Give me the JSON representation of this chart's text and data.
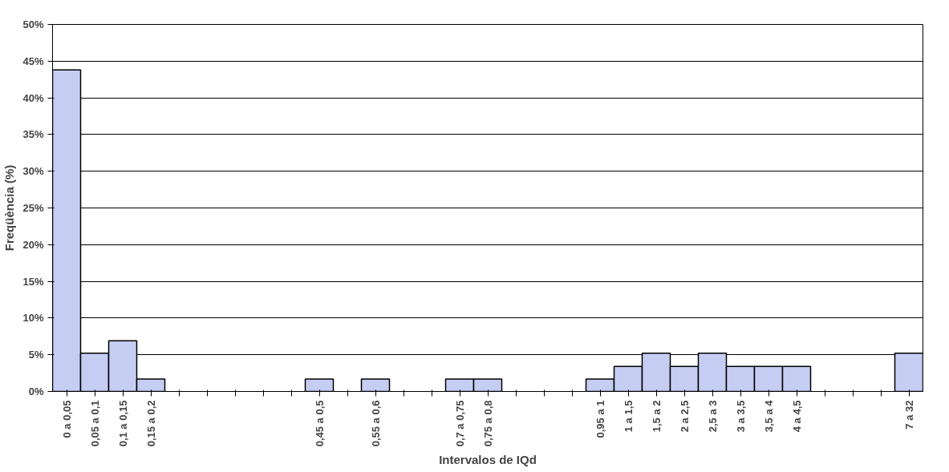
{
  "chart_data": {
    "type": "bar",
    "xlabel": "Intervalos de IQd",
    "ylabel": "Freqüència (%)",
    "categories": [
      "0 a 0,05",
      "0,05 a 0,1",
      "0,1 a 0,15",
      "0,15 a 0,2",
      null,
      null,
      null,
      null,
      null,
      "0,45 a 0,5",
      null,
      "0,55 a 0,6",
      null,
      null,
      "0,7 a 0,75",
      "0,75 a 0,8",
      null,
      null,
      null,
      "0,95 a 1",
      "1 a 1,5",
      "1,5 a 2",
      "2 a 2,5",
      "2,5 a 3",
      "3 a 3,5",
      "3,5 a 4",
      "4 a 4,5",
      null,
      null,
      null,
      "7 a 32"
    ],
    "values": [
      43.8,
      5.2,
      6.9,
      1.7,
      null,
      null,
      null,
      null,
      null,
      1.7,
      null,
      1.7,
      null,
      null,
      1.7,
      1.7,
      null,
      null,
      null,
      1.7,
      3.4,
      5.2,
      3.4,
      5.2,
      3.4,
      3.4,
      3.4,
      null,
      null,
      null,
      5.2
    ],
    "color": "#c5cdf3",
    "ylim": [
      0,
      50
    ],
    "yticks": [
      {
        "value": 0,
        "label": "0%"
      },
      {
        "value": 5,
        "label": "5%"
      },
      {
        "value": 10,
        "label": "10%"
      },
      {
        "value": 15,
        "label": "15%"
      },
      {
        "value": 20,
        "label": "20%"
      },
      {
        "value": 25,
        "label": "25%"
      },
      {
        "value": 30,
        "label": "30%"
      },
      {
        "value": 35,
        "label": "35%"
      },
      {
        "value": 40,
        "label": "40%"
      },
      {
        "value": 45,
        "label": "45%"
      },
      {
        "value": 50,
        "label": "50%"
      }
    ],
    "grid": "y"
  }
}
